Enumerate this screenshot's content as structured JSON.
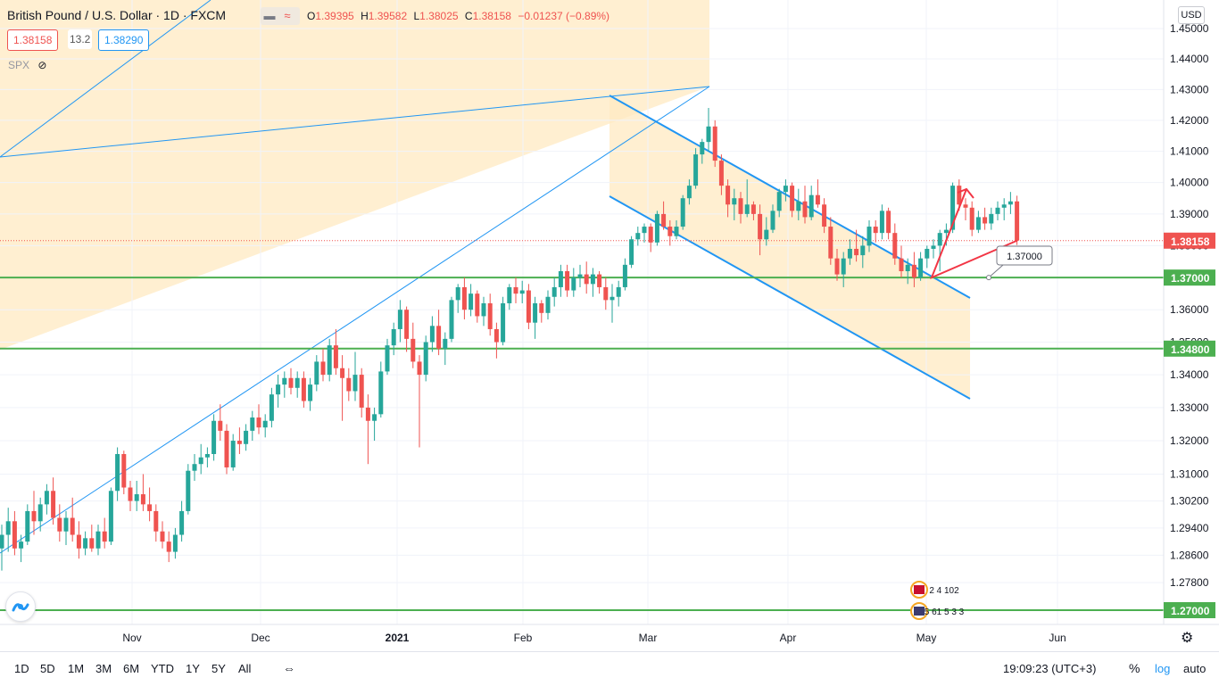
{
  "header": {
    "symbol_title": "British Pound / U.S. Dollar · 1D · FXCM",
    "ohlc": {
      "o_label": "O",
      "o": "1.39395",
      "h_label": "H",
      "h": "1.39582",
      "l_label": "L",
      "l": "1.38025",
      "c_label": "C",
      "c": "1.38158",
      "change": "−0.01237 (−0.89%)"
    },
    "bid": "1.38158",
    "spread": "13.2",
    "ask": "1.38290",
    "compare_symbol": "SPX",
    "currency": "USD"
  },
  "colors": {
    "up": "#26a69a",
    "down": "#ef5350",
    "channel": "#2196f3",
    "hline": "#4caf50",
    "zone": "#ffe9c2",
    "arrow": "#f23645"
  },
  "chart_data": {
    "type": "candlestick",
    "title": "British Pound / U.S. Dollar · 1D · FXCM",
    "x_ticks": [
      "Nov",
      "Dec",
      "2021",
      "Feb",
      "Mar",
      "Apr",
      "May",
      "Jun"
    ],
    "y_ticks": [
      "1.45000",
      "1.44000",
      "1.43000",
      "1.42000",
      "1.41000",
      "1.40000",
      "1.39000",
      "1.38000",
      "1.37000",
      "1.36000",
      "1.35000",
      "1.34000",
      "1.33000",
      "1.32000",
      "1.31000",
      "1.30200",
      "1.29400",
      "1.28600",
      "1.27800"
    ],
    "ylim": [
      1.259,
      1.4592
    ],
    "y_scale": "log",
    "last_price": "1.38158",
    "horizontal_levels": [
      {
        "label": "1.37000",
        "value": 1.37
      },
      {
        "label": "1.34800",
        "value": 1.348
      },
      {
        "label": "1.27000",
        "value": 1.27
      }
    ],
    "annotation_label": "1.37000",
    "candles": [
      [
        1.288,
        1.295,
        1.2815,
        1.292
      ],
      [
        1.292,
        1.3,
        1.287,
        1.296
      ],
      [
        1.296,
        1.299,
        1.286,
        1.288
      ],
      [
        1.288,
        1.292,
        1.284,
        1.29
      ],
      [
        1.29,
        1.301,
        1.289,
        1.299
      ],
      [
        1.299,
        1.305,
        1.292,
        1.296
      ],
      [
        1.296,
        1.303,
        1.293,
        1.301
      ],
      [
        1.301,
        1.307,
        1.298,
        1.305
      ],
      [
        1.305,
        1.309,
        1.295,
        1.297
      ],
      [
        1.297,
        1.301,
        1.29,
        1.293
      ],
      [
        1.293,
        1.299,
        1.289,
        1.297
      ],
      [
        1.297,
        1.303,
        1.29,
        1.292
      ],
      [
        1.292,
        1.296,
        1.285,
        1.288
      ],
      [
        1.288,
        1.293,
        1.286,
        1.291
      ],
      [
        1.291,
        1.295,
        1.287,
        1.288
      ],
      [
        1.288,
        1.295,
        1.286,
        1.293
      ],
      [
        1.293,
        1.297,
        1.288,
        1.29
      ],
      [
        1.29,
        1.306,
        1.289,
        1.305
      ],
      [
        1.305,
        1.318,
        1.302,
        1.316
      ],
      [
        1.316,
        1.317,
        1.304,
        1.306
      ],
      [
        1.306,
        1.308,
        1.299,
        1.302
      ],
      [
        1.302,
        1.308,
        1.299,
        1.304
      ],
      [
        1.304,
        1.31,
        1.299,
        1.301
      ],
      [
        1.301,
        1.306,
        1.296,
        1.299
      ],
      [
        1.299,
        1.301,
        1.29,
        1.293
      ],
      [
        1.293,
        1.296,
        1.288,
        1.29
      ],
      [
        1.29,
        1.293,
        1.284,
        1.287
      ],
      [
        1.287,
        1.294,
        1.285,
        1.292
      ],
      [
        1.292,
        1.302,
        1.29,
        1.299
      ],
      [
        1.299,
        1.313,
        1.298,
        1.311
      ],
      [
        1.311,
        1.316,
        1.308,
        1.313
      ],
      [
        1.313,
        1.319,
        1.31,
        1.315
      ],
      [
        1.315,
        1.318,
        1.312,
        1.316
      ],
      [
        1.316,
        1.328,
        1.314,
        1.326
      ],
      [
        1.326,
        1.331,
        1.32,
        1.323
      ],
      [
        1.323,
        1.325,
        1.31,
        1.312
      ],
      [
        1.312,
        1.322,
        1.311,
        1.32
      ],
      [
        1.32,
        1.324,
        1.316,
        1.319
      ],
      [
        1.319,
        1.325,
        1.317,
        1.323
      ],
      [
        1.323,
        1.329,
        1.32,
        1.327
      ],
      [
        1.327,
        1.331,
        1.322,
        1.324
      ],
      [
        1.324,
        1.328,
        1.321,
        1.326
      ],
      [
        1.326,
        1.336,
        1.324,
        1.334
      ],
      [
        1.334,
        1.34,
        1.33,
        1.337
      ],
      [
        1.337,
        1.341,
        1.333,
        1.339
      ],
      [
        1.339,
        1.342,
        1.334,
        1.336
      ],
      [
        1.336,
        1.341,
        1.333,
        1.339
      ],
      [
        1.339,
        1.341,
        1.33,
        1.332
      ],
      [
        1.332,
        1.339,
        1.329,
        1.337
      ],
      [
        1.337,
        1.346,
        1.335,
        1.344
      ],
      [
        1.344,
        1.348,
        1.338,
        1.34
      ],
      [
        1.34,
        1.351,
        1.338,
        1.349
      ],
      [
        1.349,
        1.354,
        1.34,
        1.342
      ],
      [
        1.342,
        1.346,
        1.326,
        1.339
      ],
      [
        1.339,
        1.342,
        1.332,
        1.335
      ],
      [
        1.335,
        1.347,
        1.332,
        1.34
      ],
      [
        1.34,
        1.342,
        1.327,
        1.33
      ],
      [
        1.33,
        1.334,
        1.313,
        1.326
      ],
      [
        1.326,
        1.33,
        1.32,
        1.328
      ],
      [
        1.328,
        1.344,
        1.327,
        1.341
      ],
      [
        1.341,
        1.351,
        1.34,
        1.349
      ],
      [
        1.349,
        1.356,
        1.346,
        1.354
      ],
      [
        1.354,
        1.363,
        1.35,
        1.36
      ],
      [
        1.36,
        1.361,
        1.347,
        1.351
      ],
      [
        1.351,
        1.356,
        1.342,
        1.344
      ],
      [
        1.344,
        1.346,
        1.318,
        1.34
      ],
      [
        1.34,
        1.352,
        1.338,
        1.35
      ],
      [
        1.35,
        1.358,
        1.347,
        1.355
      ],
      [
        1.355,
        1.36,
        1.346,
        1.348
      ],
      [
        1.348,
        1.353,
        1.343,
        1.351
      ],
      [
        1.351,
        1.364,
        1.35,
        1.363
      ],
      [
        1.363,
        1.368,
        1.359,
        1.367
      ],
      [
        1.367,
        1.37,
        1.357,
        1.36
      ],
      [
        1.36,
        1.368,
        1.358,
        1.365
      ],
      [
        1.365,
        1.366,
        1.356,
        1.358
      ],
      [
        1.358,
        1.364,
        1.355,
        1.362
      ],
      [
        1.362,
        1.365,
        1.352,
        1.354
      ],
      [
        1.354,
        1.356,
        1.345,
        1.35
      ],
      [
        1.35,
        1.364,
        1.349,
        1.362
      ],
      [
        1.362,
        1.368,
        1.36,
        1.367
      ],
      [
        1.367,
        1.37,
        1.362,
        1.365
      ],
      [
        1.365,
        1.369,
        1.362,
        1.366
      ],
      [
        1.366,
        1.368,
        1.354,
        1.356
      ],
      [
        1.356,
        1.364,
        1.351,
        1.362
      ],
      [
        1.362,
        1.363,
        1.356,
        1.359
      ],
      [
        1.359,
        1.366,
        1.357,
        1.364
      ],
      [
        1.364,
        1.37,
        1.361,
        1.367
      ],
      [
        1.367,
        1.374,
        1.364,
        1.372
      ],
      [
        1.372,
        1.374,
        1.364,
        1.366
      ],
      [
        1.366,
        1.373,
        1.364,
        1.37
      ],
      [
        1.37,
        1.374,
        1.367,
        1.371
      ],
      [
        1.371,
        1.375,
        1.365,
        1.368
      ],
      [
        1.368,
        1.373,
        1.364,
        1.371
      ],
      [
        1.371,
        1.372,
        1.365,
        1.367
      ],
      [
        1.367,
        1.37,
        1.36,
        1.363
      ],
      [
        1.363,
        1.368,
        1.356,
        1.364
      ],
      [
        1.364,
        1.369,
        1.361,
        1.367
      ],
      [
        1.367,
        1.376,
        1.366,
        1.374
      ],
      [
        1.374,
        1.383,
        1.373,
        1.382
      ],
      [
        1.382,
        1.386,
        1.38,
        1.384
      ],
      [
        1.384,
        1.387,
        1.381,
        1.386
      ],
      [
        1.386,
        1.387,
        1.378,
        1.381
      ],
      [
        1.381,
        1.391,
        1.38,
        1.39
      ],
      [
        1.39,
        1.394,
        1.385,
        1.386
      ],
      [
        1.386,
        1.388,
        1.38,
        1.383
      ],
      [
        1.383,
        1.388,
        1.382,
        1.386
      ],
      [
        1.386,
        1.396,
        1.385,
        1.395
      ],
      [
        1.395,
        1.401,
        1.393,
        1.399
      ],
      [
        1.399,
        1.411,
        1.398,
        1.409
      ],
      [
        1.409,
        1.414,
        1.406,
        1.413
      ],
      [
        1.413,
        1.424,
        1.41,
        1.418
      ],
      [
        1.418,
        1.42,
        1.405,
        1.407
      ],
      [
        1.407,
        1.409,
        1.396,
        1.399
      ],
      [
        1.399,
        1.401,
        1.389,
        1.393
      ],
      [
        1.393,
        1.398,
        1.388,
        1.395
      ],
      [
        1.395,
        1.397,
        1.387,
        1.39
      ],
      [
        1.39,
        1.401,
        1.389,
        1.393
      ],
      [
        1.393,
        1.394,
        1.388,
        1.39
      ],
      [
        1.39,
        1.393,
        1.377,
        1.382
      ],
      [
        1.382,
        1.389,
        1.38,
        1.385
      ],
      [
        1.385,
        1.393,
        1.384,
        1.391
      ],
      [
        1.391,
        1.398,
        1.389,
        1.397
      ],
      [
        1.397,
        1.401,
        1.394,
        1.399
      ],
      [
        1.399,
        1.4,
        1.389,
        1.391
      ],
      [
        1.391,
        1.398,
        1.388,
        1.394
      ],
      [
        1.394,
        1.399,
        1.387,
        1.389
      ],
      [
        1.389,
        1.399,
        1.388,
        1.396
      ],
      [
        1.396,
        1.401,
        1.392,
        1.393
      ],
      [
        1.393,
        1.395,
        1.384,
        1.386
      ],
      [
        1.386,
        1.389,
        1.374,
        1.376
      ],
      [
        1.376,
        1.379,
        1.369,
        1.371
      ],
      [
        1.371,
        1.378,
        1.367,
        1.376
      ],
      [
        1.376,
        1.382,
        1.374,
        1.379
      ],
      [
        1.379,
        1.385,
        1.375,
        1.377
      ],
      [
        1.377,
        1.383,
        1.373,
        1.38
      ],
      [
        1.38,
        1.388,
        1.378,
        1.386
      ],
      [
        1.386,
        1.388,
        1.381,
        1.384
      ],
      [
        1.384,
        1.393,
        1.382,
        1.391
      ],
      [
        1.391,
        1.392,
        1.382,
        1.384
      ],
      [
        1.384,
        1.387,
        1.374,
        1.376
      ],
      [
        1.376,
        1.38,
        1.37,
        1.372
      ],
      [
        1.372,
        1.376,
        1.368,
        1.374
      ],
      [
        1.374,
        1.378,
        1.367,
        1.37
      ],
      [
        1.37,
        1.378,
        1.369,
        1.376
      ],
      [
        1.376,
        1.38,
        1.373,
        1.379
      ],
      [
        1.379,
        1.382,
        1.376,
        1.38
      ],
      [
        1.38,
        1.385,
        1.372,
        1.384
      ],
      [
        1.384,
        1.387,
        1.38,
        1.385
      ],
      [
        1.385,
        1.4,
        1.384,
        1.399
      ],
      [
        1.399,
        1.401,
        1.391,
        1.393
      ],
      [
        1.393,
        1.395,
        1.388,
        1.392
      ],
      [
        1.392,
        1.394,
        1.383,
        1.385
      ],
      [
        1.385,
        1.391,
        1.384,
        1.389
      ],
      [
        1.389,
        1.392,
        1.385,
        1.387
      ],
      [
        1.387,
        1.392,
        1.385,
        1.39
      ],
      [
        1.39,
        1.394,
        1.388,
        1.392
      ],
      [
        1.392,
        1.395,
        1.388,
        1.393
      ],
      [
        1.393,
        1.397,
        1.39,
        1.394
      ],
      [
        1.394,
        1.3958,
        1.3802,
        1.3816
      ]
    ]
  },
  "news": [
    {
      "flag": "GB",
      "text": "2 4 102"
    },
    {
      "flag": "US",
      "text": "5 61 5 3 3"
    }
  ],
  "bottom": {
    "ranges": [
      "1D",
      "5D",
      "1M",
      "3M",
      "6M",
      "YTD",
      "1Y",
      "5Y",
      "All"
    ],
    "clock": "19:09:23 (UTC+3)",
    "percent": "%",
    "log": "log",
    "auto": "auto"
  }
}
